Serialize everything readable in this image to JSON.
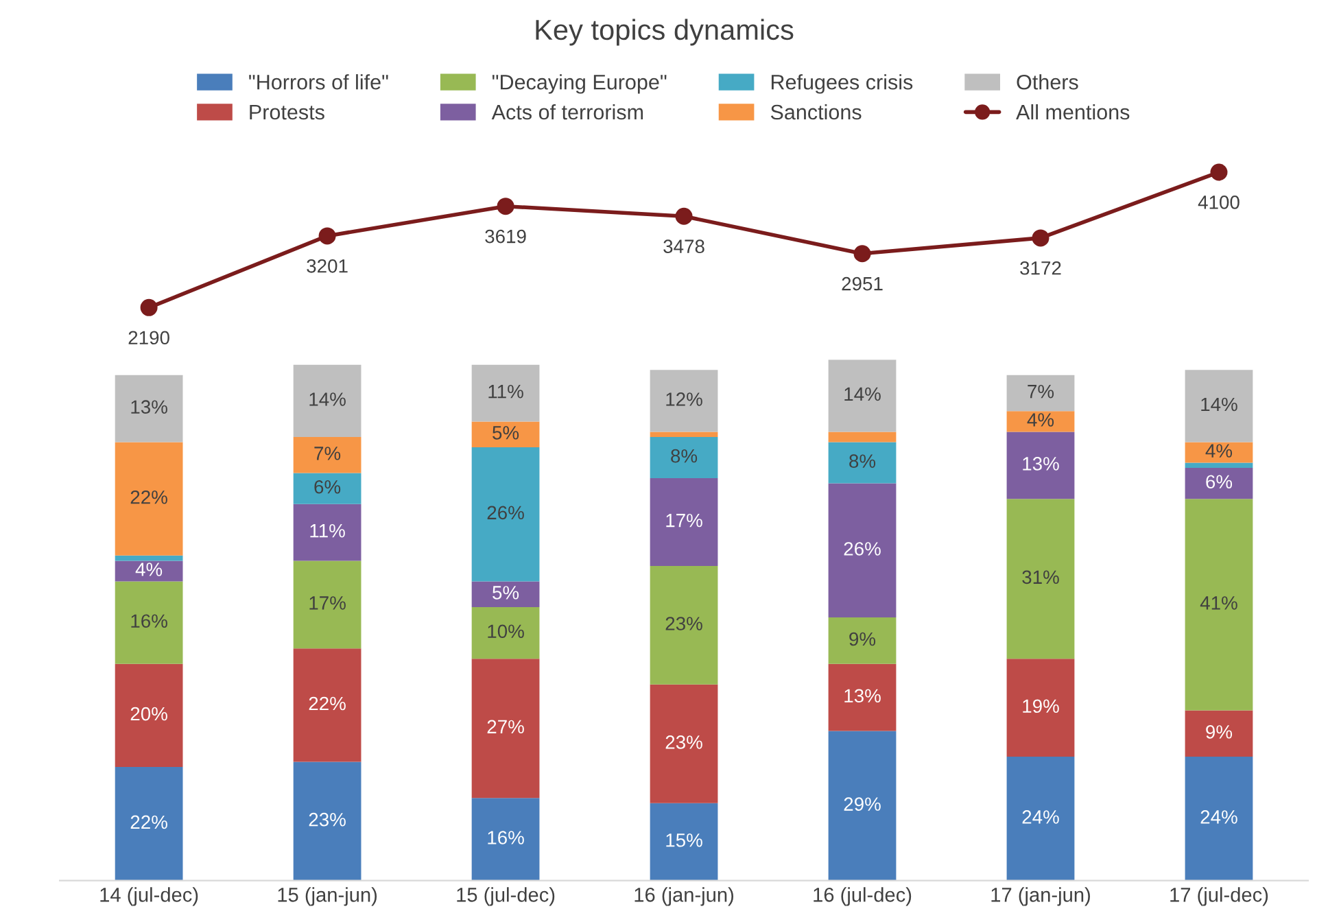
{
  "chart_data": [
    {
      "type": "line",
      "title": "Key topics dynamics",
      "legend": "top",
      "marker": "circle",
      "data_labels": true,
      "grid": false,
      "categories": [
        null,
        null,
        null,
        null,
        null,
        null,
        null
      ],
      "series": [
        {
          "name": "All mentions",
          "color": "#7b1c1c",
          "values": [
            2190,
            3201,
            3619,
            3478,
            2951,
            3172,
            4100
          ]
        }
      ]
    },
    {
      "type": "bar",
      "stacked": true,
      "grid": false,
      "legend": "top",
      "categories": [
        "14 (jul-dec)",
        "15 (jan-jun)",
        "15 (jul-dec)",
        "16 (jan-jun)",
        "16 (jul-dec)",
        "17 (jan-jun)",
        "17 (jul-dec)"
      ],
      "series": [
        {
          "name": "\"Horrors of life\"",
          "color": "#4a7ebb",
          "values": [
            22,
            23,
            16,
            15,
            29,
            24,
            24
          ],
          "value_labels": [
            "22%",
            "23%",
            "16%",
            "15%",
            "29%",
            "24%",
            "24%"
          ]
        },
        {
          "name": "Protests",
          "color": "#be4b48",
          "values": [
            20,
            22,
            27,
            23,
            13,
            19,
            9
          ],
          "value_labels": [
            "20%",
            "22%",
            "27%",
            "23%",
            "13%",
            "19%",
            "9%"
          ]
        },
        {
          "name": "\"Decaying Europe\"",
          "color": "#98b954",
          "values": [
            16,
            17,
            10,
            23,
            9,
            31,
            41
          ],
          "value_labels": [
            "16%",
            "17%",
            "10%",
            "23%",
            "9%",
            "31%",
            "41%"
          ]
        },
        {
          "name": "Acts of terrorism",
          "color": "#7d5fa0",
          "values": [
            4,
            11,
            5,
            17,
            26,
            13,
            6
          ],
          "value_labels": [
            "4%",
            "11%",
            "5%",
            "17%",
            "26%",
            "13%",
            "6%"
          ]
        },
        {
          "name": "Refugees crisis",
          "color": "#46aac5",
          "values": [
            1,
            6,
            26,
            8,
            8,
            0,
            1
          ],
          "value_labels": [
            null,
            "6%",
            "26%",
            "8%",
            "8%",
            null,
            null
          ]
        },
        {
          "name": "Sanctions",
          "color": "#f79646",
          "values": [
            22,
            7,
            5,
            1,
            2,
            4,
            4
          ],
          "value_labels": [
            "22%",
            "7%",
            "5%",
            null,
            null,
            "4%",
            "4%"
          ]
        },
        {
          "name": "Others",
          "color": "#bfbfbf",
          "values": [
            13,
            14,
            11,
            12,
            14,
            7,
            14
          ],
          "value_labels": [
            "13%",
            "14%",
            "11%",
            "12%",
            "14%",
            "7%",
            "14%"
          ]
        }
      ]
    }
  ]
}
